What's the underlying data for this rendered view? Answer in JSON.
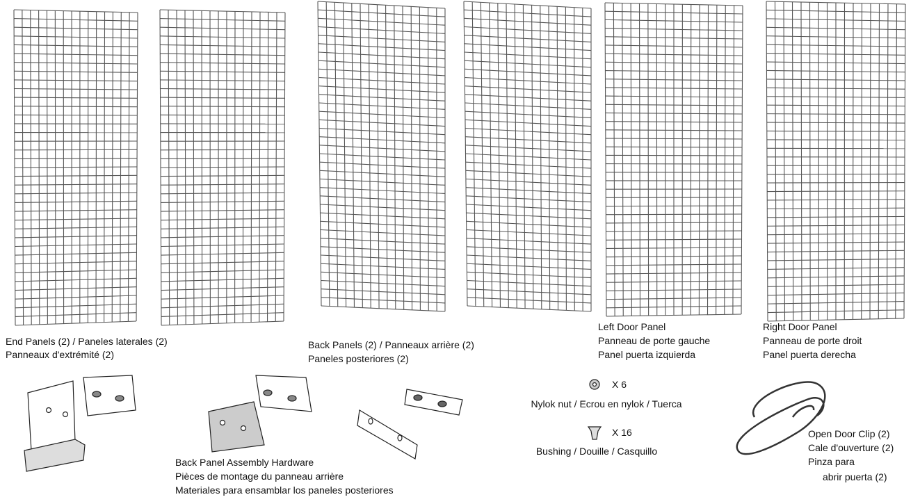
{
  "panels": [
    {
      "lines": [
        "End Panels (2) / Paneles laterales (2)",
        "Panneaux d'extrémité (2)"
      ]
    },
    {
      "lines": [
        "Back Panels (2) / Panneaux arrière (2)",
        "Paneles posteriores (2)"
      ]
    },
    {
      "lines": [
        "Left Door Panel",
        "Panneau de porte gauche",
        "Panel puerta izquierda"
      ]
    },
    {
      "lines": [
        "Right Door Panel",
        "Panneau de porte droit",
        "Panel puerta derecha"
      ]
    }
  ],
  "hardware": {
    "lines": [
      "Back Panel Assembly Hardware",
      "Pièces de montage du panneau arrière",
      "Materiales para ensamblar los paneles posteriores"
    ]
  },
  "nut": {
    "quantity": "X 6",
    "label": "Nylok nut / Ecrou en nylok / Tuerca"
  },
  "bushing": {
    "quantity": "X 16",
    "label": "Bushing / Douille / Casquillo"
  },
  "clip": {
    "lines": [
      "Open Door Clip (2)",
      "Cale d'ouverture (2)",
      "Pinza para",
      "abrir puerta (2)"
    ]
  }
}
